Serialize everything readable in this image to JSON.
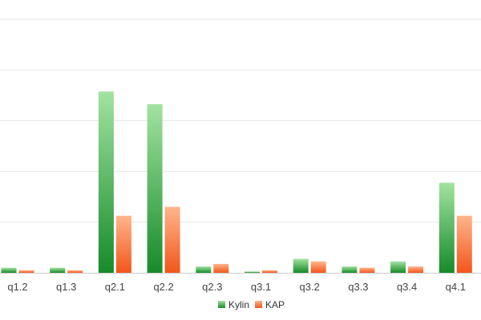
{
  "chart_data": {
    "type": "bar",
    "categories": [
      "q1.2",
      "q1.3",
      "q2.1",
      "q2.2",
      "q2.3",
      "q3.1",
      "q3.2",
      "q3.3",
      "q3.4",
      "q4.1"
    ],
    "series": [
      {
        "name": "Kylin",
        "values": [
          0.4,
          0.4,
          14.3,
          13.3,
          0.5,
          0.1,
          1.1,
          0.5,
          0.9,
          7.1
        ]
      },
      {
        "name": "KAP",
        "values": [
          0.2,
          0.2,
          4.5,
          5.2,
          0.7,
          0.2,
          0.9,
          0.4,
          0.5,
          4.5
        ]
      }
    ],
    "ylim": [
      0,
      20
    ],
    "grid": true,
    "legend_position": "bottom",
    "colors": {
      "Kylin_top": "#a2e3a0",
      "Kylin_bottom": "#178a2a",
      "KAP_top": "#ffb58c",
      "KAP_bottom": "#f2561a"
    }
  }
}
